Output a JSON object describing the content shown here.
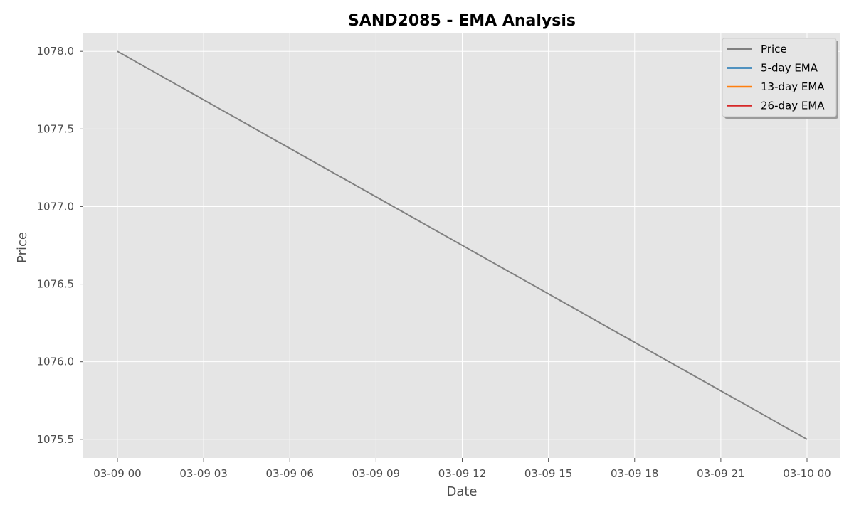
{
  "chart_data": {
    "type": "line",
    "title": "SAND2085 - EMA Analysis",
    "xlabel": "Date",
    "ylabel": "Price",
    "x_ticks": [
      "03-09 00",
      "03-09 03",
      "03-09 06",
      "03-09 09",
      "03-09 12",
      "03-09 15",
      "03-09 18",
      "03-09 21",
      "03-10 00"
    ],
    "x_range_hours": [
      0,
      24
    ],
    "y_ticks": [
      "1075.5",
      "1076.0",
      "1076.5",
      "1077.0",
      "1077.5",
      "1078.0"
    ],
    "ylim": [
      1075.38,
      1078.12
    ],
    "grid": true,
    "legend_position": "top-right",
    "series": [
      {
        "name": "Price",
        "color": "#808080",
        "x": [
          "03-09 00",
          "03-10 00"
        ],
        "y": [
          1078.0,
          1075.5
        ]
      },
      {
        "name": "5-day EMA",
        "color": "#1f77b4",
        "x": [],
        "y": []
      },
      {
        "name": "13-day EMA",
        "color": "#ff7f0e",
        "x": [],
        "y": []
      },
      {
        "name": "26-day EMA",
        "color": "#d62728",
        "x": [],
        "y": []
      }
    ]
  }
}
